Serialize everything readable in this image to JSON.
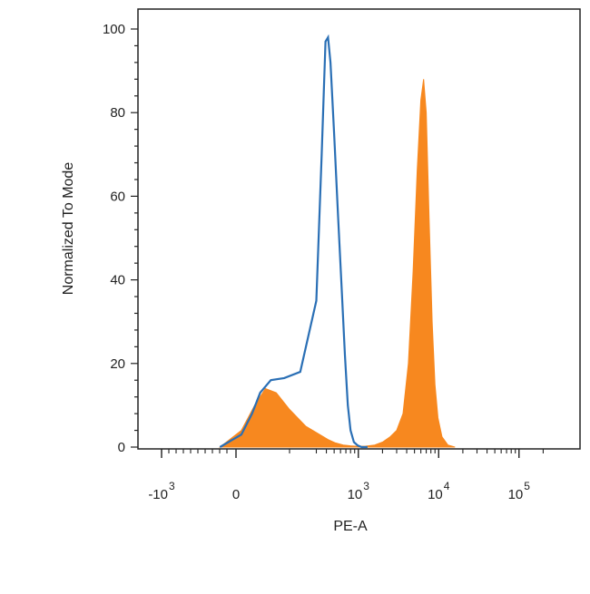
{
  "chart_data": {
    "type": "area",
    "title": "",
    "xlabel": "PE-A",
    "ylabel": "Normalized To Mode",
    "x_scale": "biexponential",
    "xlim": [
      -2000,
      250000
    ],
    "ylim": [
      0,
      103
    ],
    "y_ticks": [
      0,
      20,
      40,
      60,
      80,
      100
    ],
    "x_ticks": [
      {
        "value": -1000,
        "base": "-10",
        "exp": "3"
      },
      {
        "value": 0,
        "base": "0",
        "exp": ""
      },
      {
        "value": 1000,
        "base": "10",
        "exp": "3"
      },
      {
        "value": 10000,
        "base": "10",
        "exp": "4"
      },
      {
        "value": 100000,
        "base": "10",
        "exp": "5"
      }
    ],
    "grid": false,
    "legend": "none",
    "series": [
      {
        "style": "line",
        "color": "#2a6fb5",
        "points": [
          [
            -60,
            0
          ],
          [
            20,
            3
          ],
          [
            60,
            8
          ],
          [
            90,
            13
          ],
          [
            130,
            16
          ],
          [
            180,
            16.5
          ],
          [
            240,
            18
          ],
          [
            300,
            35
          ],
          [
            350,
            70
          ],
          [
            390,
            97
          ],
          [
            420,
            98
          ],
          [
            450,
            92
          ],
          [
            500,
            75
          ],
          [
            560,
            55
          ],
          [
            620,
            38
          ],
          [
            680,
            22
          ],
          [
            740,
            10
          ],
          [
            800,
            4
          ],
          [
            880,
            1.2
          ],
          [
            980,
            0.4
          ],
          [
            1100,
            0
          ],
          [
            1300,
            0
          ]
        ]
      },
      {
        "style": "filled",
        "color": "#f7881f",
        "points": [
          [
            -60,
            0
          ],
          [
            20,
            4
          ],
          [
            70,
            10
          ],
          [
            110,
            14
          ],
          [
            150,
            13
          ],
          [
            200,
            9
          ],
          [
            260,
            5
          ],
          [
            330,
            3
          ],
          [
            420,
            1.8
          ],
          [
            520,
            1
          ],
          [
            650,
            0.5
          ],
          [
            800,
            0.3
          ],
          [
            950,
            0.2
          ],
          [
            1200,
            0.2
          ],
          [
            1600,
            0.5
          ],
          [
            2000,
            1.2
          ],
          [
            2500,
            2.5
          ],
          [
            3000,
            4
          ],
          [
            3600,
            8
          ],
          [
            4200,
            20
          ],
          [
            4800,
            42
          ],
          [
            5400,
            66
          ],
          [
            6000,
            83
          ],
          [
            6500,
            88
          ],
          [
            7000,
            80
          ],
          [
            7600,
            55
          ],
          [
            8300,
            30
          ],
          [
            9000,
            15
          ],
          [
            9800,
            7
          ],
          [
            11000,
            2.5
          ],
          [
            13000,
            0.5
          ],
          [
            16000,
            0
          ]
        ]
      }
    ]
  }
}
